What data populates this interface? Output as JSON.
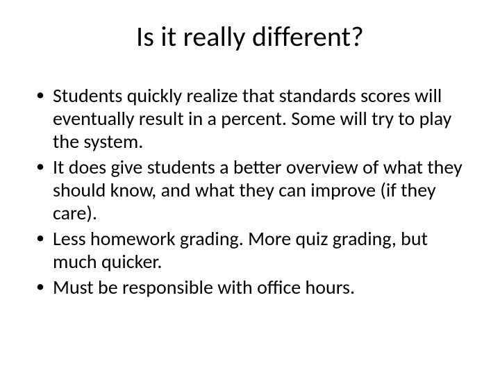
{
  "slide": {
    "title": "Is it really different?",
    "bullets": [
      "Students quickly realize that standards scores will eventually result in a percent. Some will try to play the system.",
      "It does give students a better overview of what they should know, and what they can improve (if they care).",
      "Less homework grading. More quiz grading, but much quicker.",
      "Must be responsible with office hours."
    ],
    "title_fontsize": 40,
    "body_fontsize": 28,
    "text_color": "#000000",
    "background_color": "#ffffff"
  }
}
